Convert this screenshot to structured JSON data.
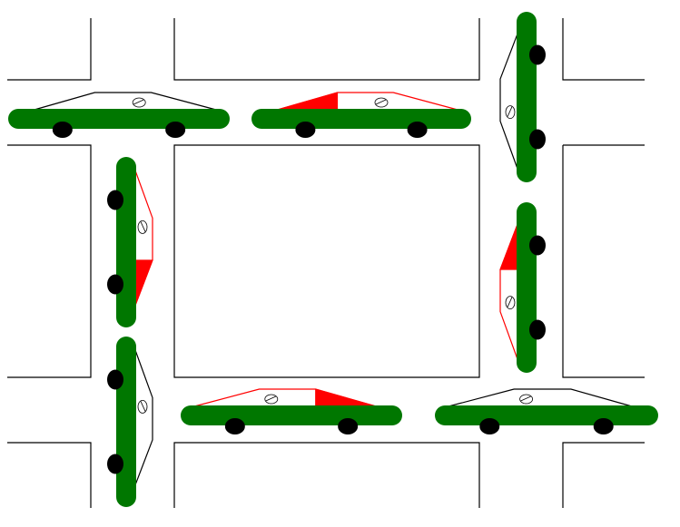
{
  "colors": {
    "background": "#ffffff",
    "road_line": "#000000",
    "car_chassis": "#007700",
    "wheel": "#000000",
    "body_outline_plain": "#000000",
    "body_outline_highlight": "#ff0000",
    "highlight_fill": "#ff0000"
  },
  "board": {
    "cars": [
      {
        "id": "top-left-car",
        "orientation": "horizontal",
        "facing": "right",
        "highlighted": false,
        "highlight_tail": false
      },
      {
        "id": "top-middle-car",
        "orientation": "horizontal",
        "facing": "right",
        "highlighted": true,
        "highlight_tail": true
      },
      {
        "id": "top-right-car",
        "orientation": "vertical",
        "facing": "down",
        "highlighted": false,
        "highlight_tail": false
      },
      {
        "id": "left-upper-car",
        "orientation": "vertical",
        "facing": "up",
        "highlighted": true,
        "highlight_tail": true
      },
      {
        "id": "right-middle-car",
        "orientation": "vertical",
        "facing": "down",
        "highlighted": true,
        "highlight_tail": true
      },
      {
        "id": "left-lower-car",
        "orientation": "vertical",
        "facing": "up",
        "highlighted": false,
        "highlight_tail": false
      },
      {
        "id": "bottom-middle-car",
        "orientation": "horizontal",
        "facing": "left",
        "highlighted": true,
        "highlight_tail": true
      },
      {
        "id": "bottom-right-car",
        "orientation": "horizontal",
        "facing": "left",
        "highlighted": false,
        "highlight_tail": false
      }
    ]
  }
}
